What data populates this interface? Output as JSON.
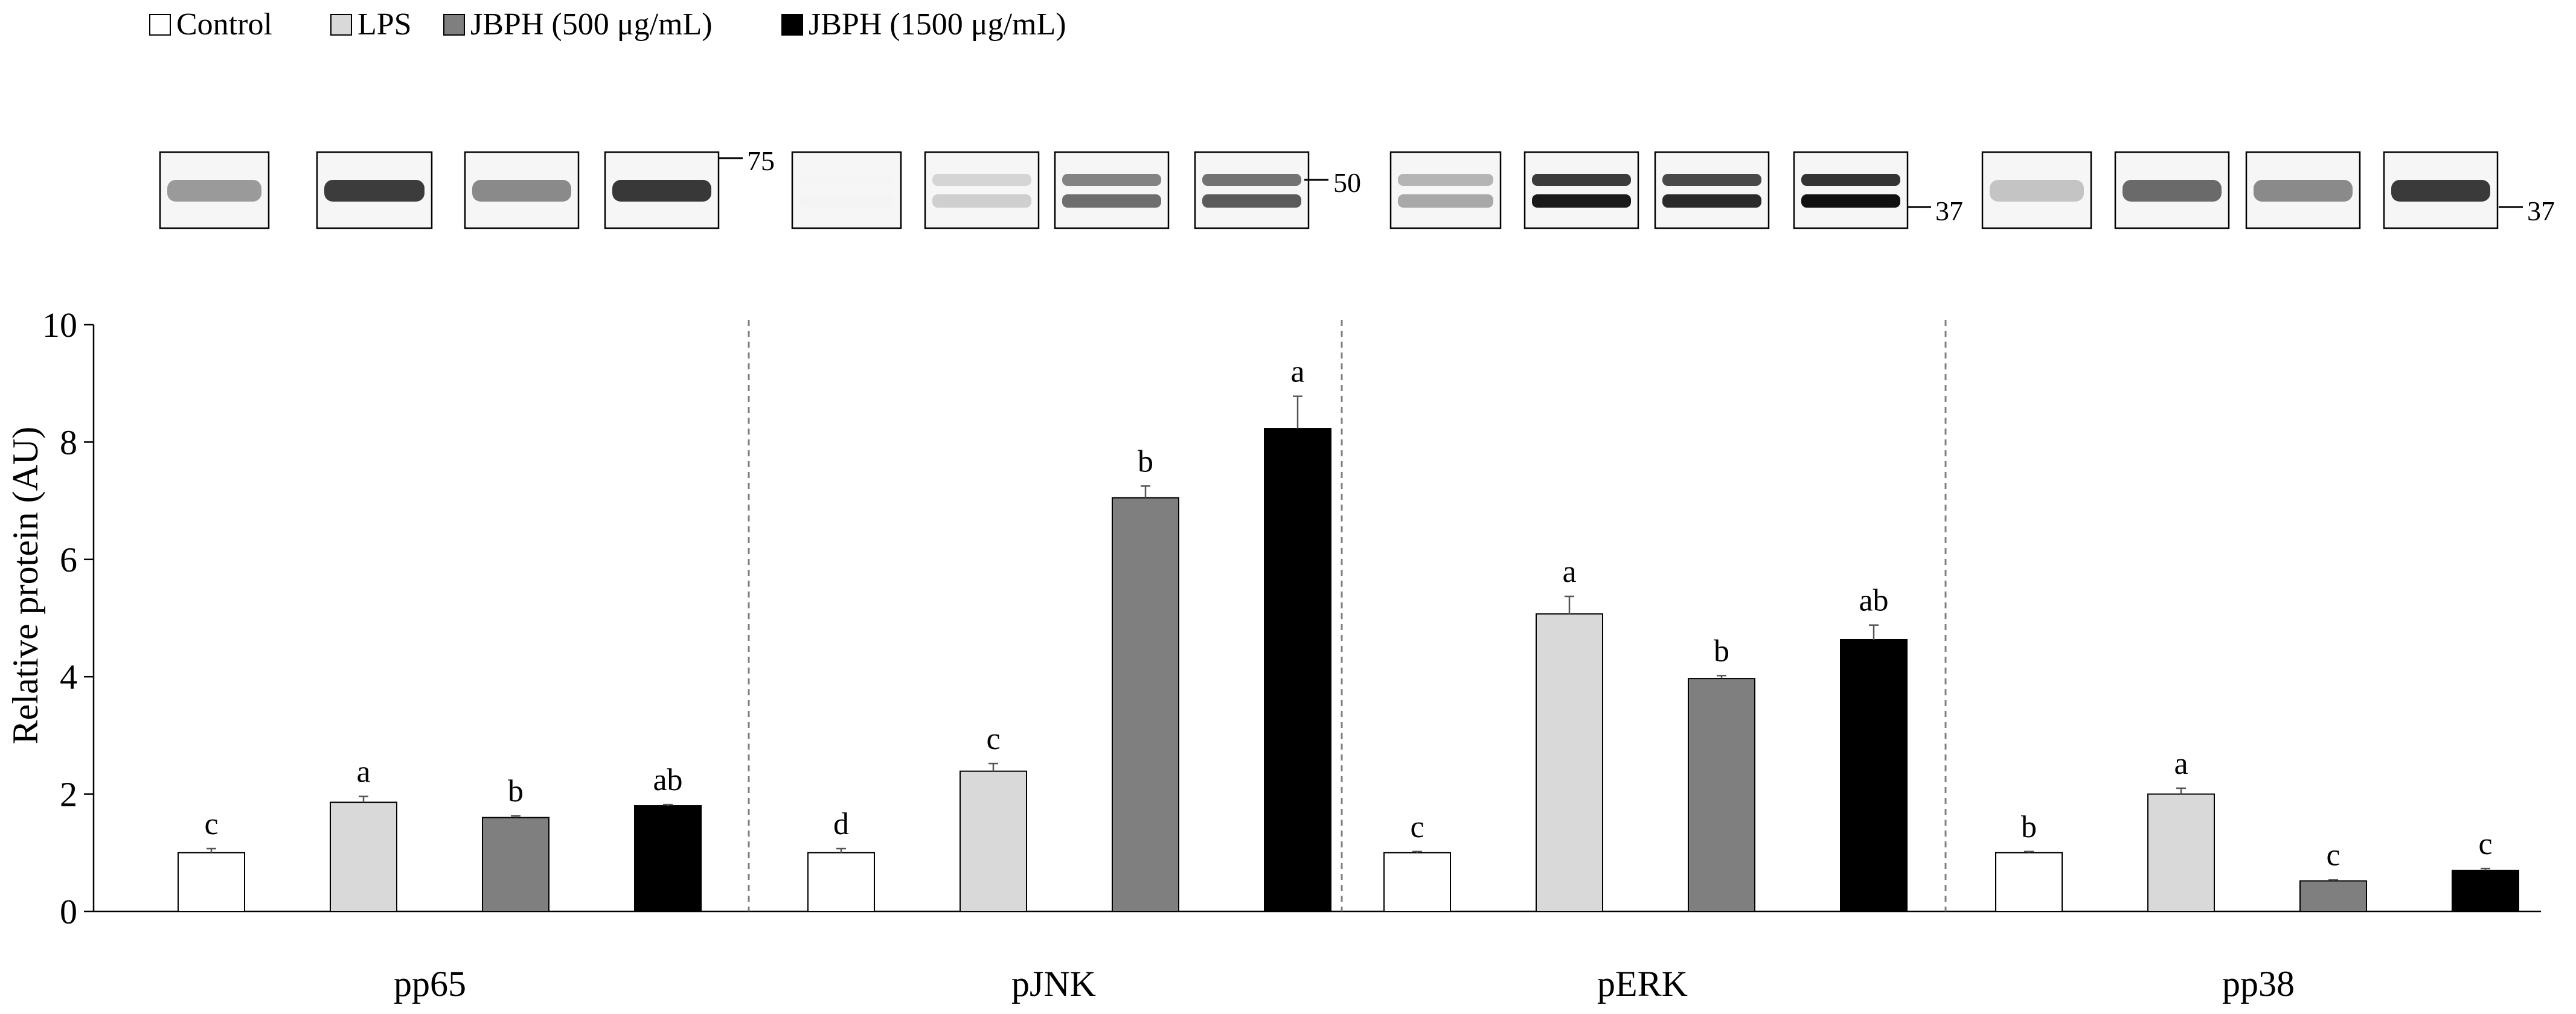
{
  "chart_data": {
    "type": "bar",
    "ylabel": "Relative protein (AU)",
    "ylim": [
      0,
      10
    ],
    "yticks": [
      0,
      2,
      4,
      6,
      8,
      10
    ],
    "grid": false,
    "legend_position": "top-left",
    "categories": [
      "pp65",
      "pJNK",
      "pERK",
      "pp38"
    ],
    "series": [
      {
        "name": "Control",
        "color": "#ffffff",
        "values": [
          1.0,
          1.0,
          1.0,
          1.0
        ],
        "errors": [
          0.07,
          0.07,
          0.02,
          0.02
        ],
        "letters": [
          "c",
          "d",
          "c",
          "b"
        ]
      },
      {
        "name": "LPS",
        "color": "#d9d9d9",
        "values": [
          1.86,
          2.39,
          5.07,
          2.0
        ],
        "errors": [
          0.1,
          0.13,
          0.3,
          0.1
        ],
        "letters": [
          "a",
          "c",
          "a",
          "a"
        ]
      },
      {
        "name": "JBPH (500 μg/mL)",
        "color": "#7f7f7f",
        "values": [
          1.6,
          7.05,
          3.97,
          0.52
        ],
        "errors": [
          0.03,
          0.2,
          0.05,
          0.02
        ],
        "letters": [
          "b",
          "b",
          "b",
          "c"
        ]
      },
      {
        "name": "JBPH (1500 μg/mL)",
        "color": "#000000",
        "values": [
          1.8,
          8.23,
          4.63,
          0.7
        ],
        "errors": [
          0.02,
          0.55,
          0.25,
          0.03
        ],
        "letters": [
          "ab",
          "a",
          "ab",
          "c"
        ]
      }
    ]
  },
  "blots": {
    "markers": [
      "75",
      "50",
      "37",
      "37"
    ],
    "panels": [
      {
        "target": "pp65",
        "band_colors": [
          "#9a9a9a",
          "#3c3c3c",
          "#8a8a8a",
          "#383838"
        ]
      },
      {
        "target": "pJNK",
        "band_colors": [
          "#f4f4f4",
          "#cfcfcf",
          "#6e6e6e",
          "#5a5a5a"
        ]
      },
      {
        "target": "pERK",
        "band_colors": [
          "#a8a8a8",
          "#1a1a1a",
          "#2a2a2a",
          "#101010"
        ]
      },
      {
        "target": "pp38",
        "band_colors": [
          "#c4c4c4",
          "#6a6a6a",
          "#8a8a8a",
          "#3a3a3a"
        ]
      }
    ]
  },
  "colors": {
    "axis": "#000000",
    "separator": "#7f7f7f",
    "bar_outline": "#000000"
  }
}
